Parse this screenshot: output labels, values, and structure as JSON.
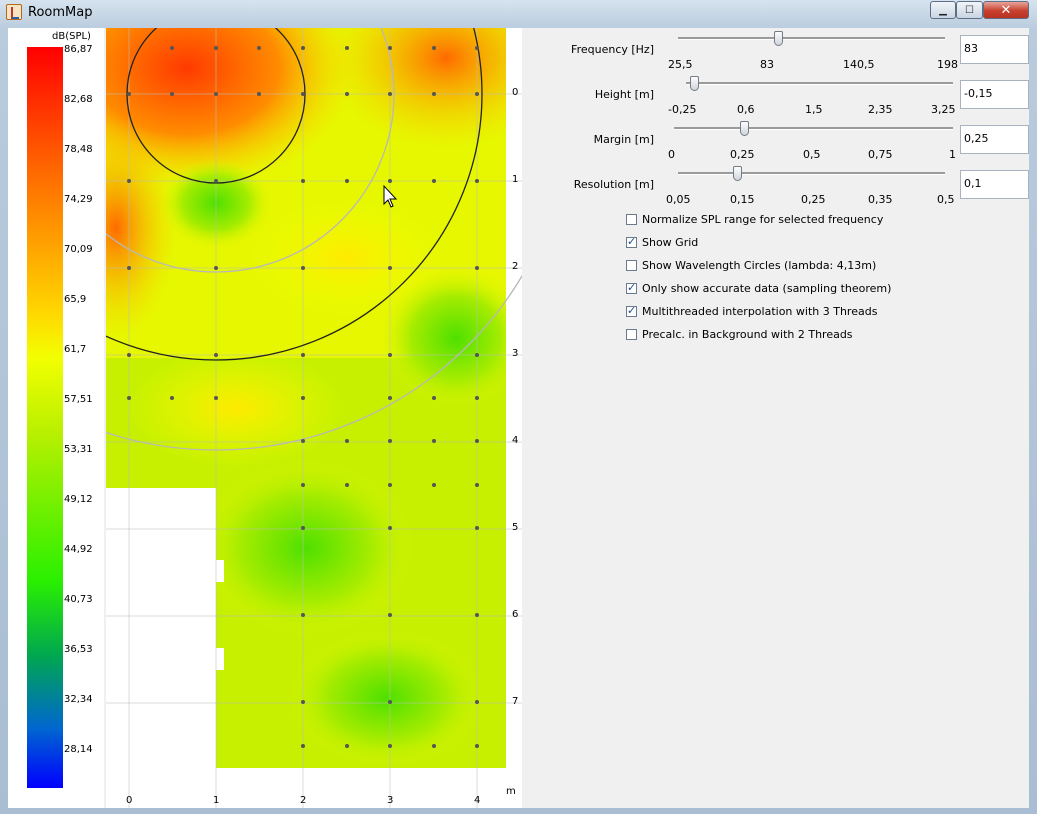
{
  "window": {
    "title": "RoomMap"
  },
  "legend": {
    "title": "dB(SPL)",
    "labels": [
      "86,87",
      "82,68",
      "78,48",
      "74,29",
      "70,09",
      "65,9",
      "61,7",
      "57,51",
      "53,31",
      "49,12",
      "44,92",
      "40,73",
      "36,53",
      "32,34",
      "28,14"
    ]
  },
  "map": {
    "y_ticks": [
      "0",
      "1",
      "2",
      "3",
      "4",
      "5",
      "6",
      "7"
    ],
    "x_ticks": [
      "0",
      "1",
      "2",
      "3",
      "4"
    ],
    "unit": "m"
  },
  "controls": {
    "frequency": {
      "label": "Frequency [Hz]",
      "ticks": [
        "25,5",
        "83",
        "140,5",
        "198"
      ],
      "value": "83",
      "level": 0.333
    },
    "height": {
      "label": "Height [m]",
      "ticks": [
        "-0,25",
        "0,6",
        "1,5",
        "2,35",
        "3,25"
      ],
      "value": "-0,15",
      "level": 0.03
    },
    "margin": {
      "label": "Margin [m]",
      "ticks": [
        "0",
        "0,25",
        "0,5",
        "0,75",
        "1"
      ],
      "value": "0,25",
      "level": 0.25
    },
    "resolution": {
      "label": "Resolution [m]",
      "ticks": [
        "0,05",
        "0,15",
        "0,25",
        "0,35",
        "0,5"
      ],
      "value": "0,1",
      "level": 0.22
    },
    "checkboxes": [
      {
        "label": "Normalize SPL range for selected frequency",
        "checked": false
      },
      {
        "label": "Show Grid",
        "checked": true
      },
      {
        "label": "Show Wavelength Circles (lambda: 4,13m)",
        "checked": false
      },
      {
        "label": "Only show accurate data (sampling theorem)",
        "checked": true
      },
      {
        "label": "Multithreaded interpolation with 3 Threads",
        "checked": true
      },
      {
        "label": "Precalc. in Background with 2 Threads",
        "checked": false
      }
    ]
  }
}
